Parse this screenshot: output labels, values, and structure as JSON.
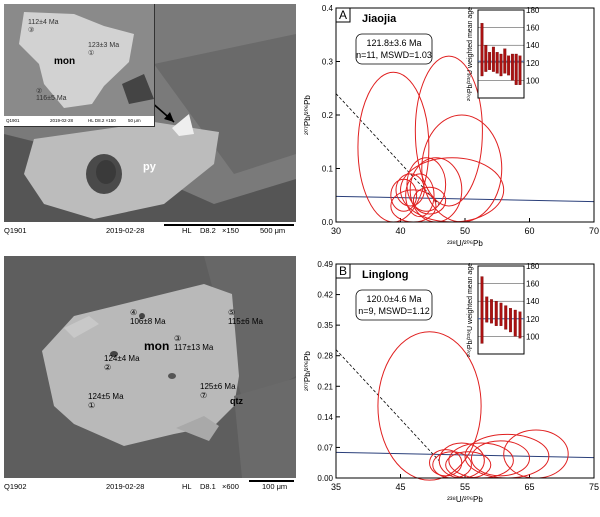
{
  "sem_top": {
    "sample_id": "Q1901",
    "date": "2019-02-28",
    "detector": "HL",
    "distance": "D8.2",
    "magnification": "×150",
    "scale_bar": "500 μm",
    "label_py": "py",
    "inset": {
      "label_mon": "mon",
      "spots": [
        {
          "num": "③",
          "age": "112±4 Ma"
        },
        {
          "num": "①",
          "age": "123±3 Ma"
        },
        {
          "num": "②",
          "age": "116±5 Ma"
        }
      ],
      "footer": {
        "id": "Q1901",
        "date": "2019-02-28",
        "hl": "HL D8.2 ×150",
        "scale": "50 μm"
      }
    }
  },
  "sem_bottom": {
    "sample_id": "Q1902",
    "date": "2019-02-28",
    "detector": "HL",
    "distance": "D8.1",
    "magnification": "×600",
    "scale_bar": "100 μm",
    "label_mon": "mon",
    "label_qtz": "qtz",
    "spots": [
      {
        "num": "④",
        "age": "106±8 Ma"
      },
      {
        "num": "⑤",
        "age": "115±6 Ma"
      },
      {
        "num": "③",
        "age": "117±13 Ma"
      },
      {
        "num": "②",
        "age": "124±4 Ma"
      },
      {
        "num": "⑦",
        "age": "125±6 Ma"
      },
      {
        "num": "①",
        "age": "124±5 Ma"
      }
    ]
  },
  "chart_data": [
    {
      "type": "scatter",
      "panel_letter": "A",
      "title": "Jiaojia",
      "age_box": {
        "line1": "121.8±3.6 Ma",
        "line2": "n=11, MSWD=1.03"
      },
      "xlabel": "²³⁸U/²⁰⁶Pb",
      "ylabel": "²⁰⁷Pb/²⁰⁶Pb",
      "xlim": [
        30,
        70
      ],
      "ylim": [
        0,
        0.4
      ],
      "xticks": [
        "30",
        "40",
        "50",
        "60",
        "70"
      ],
      "yticks": [
        "0.0",
        "0.1",
        "0.2",
        "0.3",
        "0.4"
      ],
      "ellipses": [
        {
          "x": 38.9,
          "y": 0.14,
          "rx": 5.5,
          "ry": 0.14
        },
        {
          "x": 47.5,
          "y": 0.17,
          "rx": 5.2,
          "ry": 0.14
        },
        {
          "x": 49.5,
          "y": 0.1,
          "rx": 6.2,
          "ry": 0.1
        },
        {
          "x": 48.0,
          "y": 0.06,
          "rx": 8.0,
          "ry": 0.06
        },
        {
          "x": 44.0,
          "y": 0.07,
          "rx": 3.0,
          "ry": 0.05
        },
        {
          "x": 45.5,
          "y": 0.06,
          "rx": 4.0,
          "ry": 0.06
        },
        {
          "x": 43.0,
          "y": 0.05,
          "rx": 2.2,
          "ry": 0.04
        },
        {
          "x": 41.5,
          "y": 0.06,
          "rx": 2.2,
          "ry": 0.03
        },
        {
          "x": 42.0,
          "y": 0.03,
          "rx": 3.5,
          "ry": 0.03
        },
        {
          "x": 40.5,
          "y": 0.05,
          "rx": 2.0,
          "ry": 0.03
        },
        {
          "x": 44.5,
          "y": 0.04,
          "rx": 2.5,
          "ry": 0.025
        }
      ],
      "inset": {
        "ylabel": "²⁰⁶Pb/²³⁸U weighted mean age",
        "ylim": [
          80,
          180
        ],
        "yticks": [
          "100",
          "120",
          "140",
          "160",
          "180"
        ],
        "mean": 121.8,
        "bars": [
          [
            105,
            165
          ],
          [
            110,
            140
          ],
          [
            112,
            132
          ],
          [
            110,
            138
          ],
          [
            108,
            132
          ],
          [
            105,
            130
          ],
          [
            108,
            136
          ],
          [
            106,
            128
          ],
          [
            100,
            130
          ],
          [
            95,
            130
          ],
          [
            95,
            128
          ]
        ]
      }
    },
    {
      "type": "scatter",
      "panel_letter": "B",
      "title": "Linglong",
      "age_box": {
        "line1": "120.0±4.6 Ma",
        "line2": "n=9, MSWD=1.12"
      },
      "xlabel": "²³⁸U/²⁰⁶Pb",
      "ylabel": "²⁰⁷Pb/²⁰⁶Pb",
      "xlim": [
        35,
        75
      ],
      "ylim": [
        0,
        0.49
      ],
      "xticks": [
        "35",
        "45",
        "55",
        "65",
        "75"
      ],
      "yticks": [
        "0.00",
        "0.07",
        "0.14",
        "0.21",
        "0.28",
        "0.35",
        "0.42",
        "0.49"
      ],
      "ellipses": [
        {
          "x": 49.5,
          "y": 0.165,
          "rx": 8.0,
          "ry": 0.17
        },
        {
          "x": 61.5,
          "y": 0.05,
          "rx": 6.5,
          "ry": 0.05
        },
        {
          "x": 60.5,
          "y": 0.045,
          "rx": 4.5,
          "ry": 0.04
        },
        {
          "x": 57.5,
          "y": 0.04,
          "rx": 5.0,
          "ry": 0.04
        },
        {
          "x": 54.5,
          "y": 0.04,
          "rx": 3.5,
          "ry": 0.04
        },
        {
          "x": 53.0,
          "y": 0.03,
          "rx": 3.0,
          "ry": 0.03
        },
        {
          "x": 52.0,
          "y": 0.035,
          "rx": 2.5,
          "ry": 0.03
        },
        {
          "x": 55.5,
          "y": 0.03,
          "rx": 3.5,
          "ry": 0.03
        },
        {
          "x": 66.0,
          "y": 0.055,
          "rx": 5.0,
          "ry": 0.055
        }
      ],
      "inset": {
        "ylabel": "²⁰⁶Pb/²³⁸U weighted mean age",
        "ylim": [
          80,
          180
        ],
        "yticks": [
          "100",
          "120",
          "140",
          "160",
          "180"
        ],
        "mean": 120.0,
        "bars": [
          [
            92,
            168
          ],
          [
            116,
            145
          ],
          [
            115,
            142
          ],
          [
            112,
            140
          ],
          [
            112,
            138
          ],
          [
            108,
            135
          ],
          [
            105,
            132
          ],
          [
            100,
            130
          ],
          [
            98,
            128
          ]
        ]
      }
    }
  ]
}
